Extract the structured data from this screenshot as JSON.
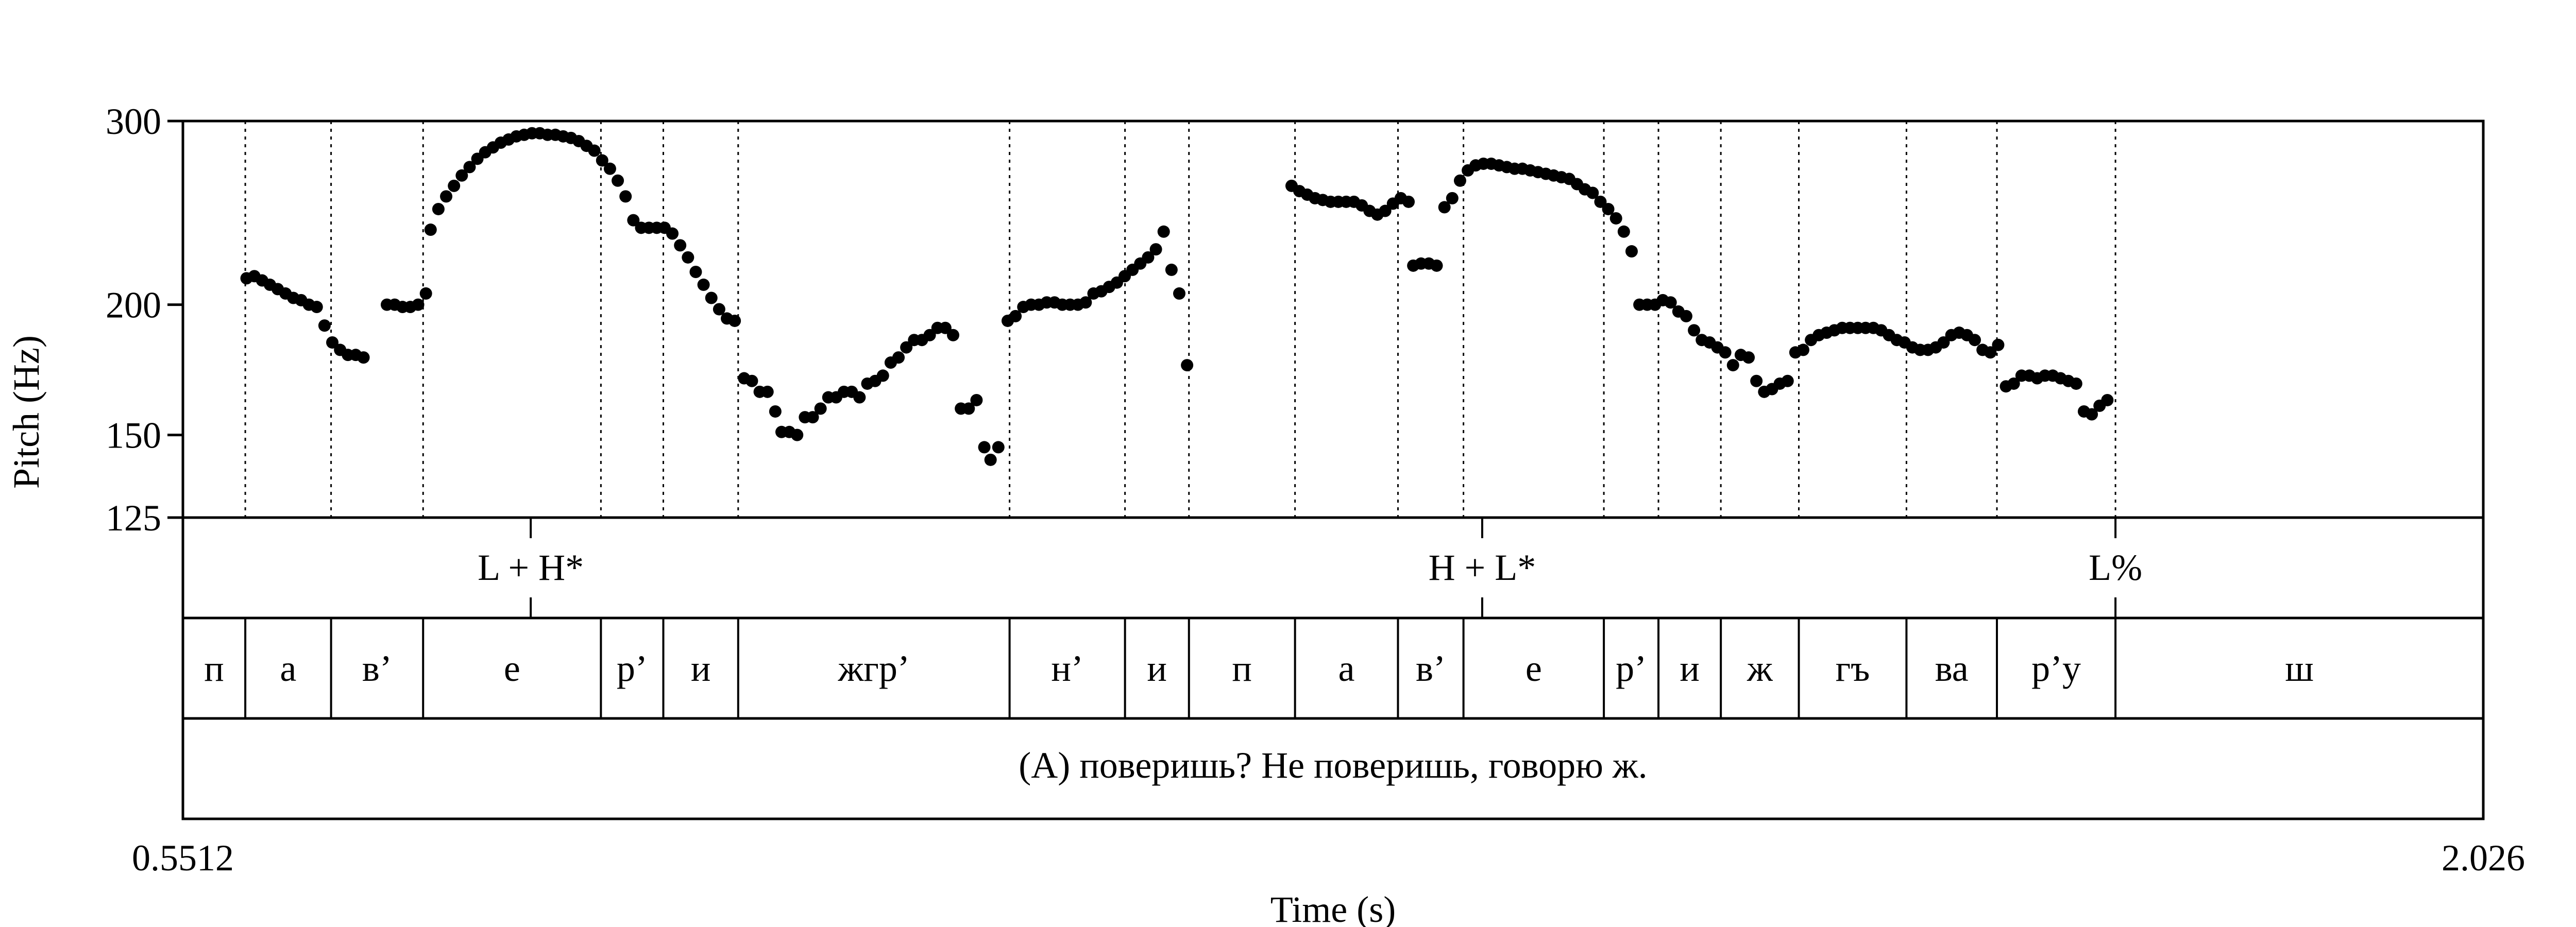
{
  "chart_data": {
    "type": "scatter",
    "xlabel": "Time (s)",
    "ylabel": "Pitch (Hz)",
    "xlim": [
      0.5512,
      2.026
    ],
    "ylim": [
      125,
      300
    ],
    "yscale": "log",
    "x_tick_labels": [
      "0.5512",
      "2.026"
    ],
    "y_ticks": [
      125,
      150,
      200,
      300
    ],
    "y_tick_labels": [
      "125",
      "150",
      "200",
      "300"
    ],
    "segment_boundaries": [
      0.5912,
      0.6462,
      0.7052,
      0.8192,
      0.8592,
      0.9072,
      1.0812,
      1.1552,
      1.1962,
      1.2642,
      1.3302,
      1.3722,
      1.4622,
      1.4972,
      1.5372,
      1.5872,
      1.6562,
      1.7142,
      1.7902
    ],
    "tiers": {
      "tones": [
        {
          "label": "L + H*",
          "time": 0.7742
        },
        {
          "label": "H + L*",
          "time": 1.3842
        },
        {
          "label": "L%",
          "time": 1.7902
        }
      ],
      "segments": [
        "п",
        "а",
        "в’",
        "е",
        "р’",
        "и",
        "жгр’",
        "н’",
        "и",
        "п",
        "а",
        "в’",
        "е",
        "р’",
        "и",
        "ж",
        "гъ",
        "ва",
        "р’у",
        "ш"
      ],
      "sentence": "(А) поверишь? Не поверишь, говорю ж."
    },
    "series": [
      {
        "points": [
          [
            0.592,
            212
          ],
          [
            0.597,
            213
          ],
          [
            0.602,
            211
          ],
          [
            0.607,
            209
          ],
          [
            0.612,
            207
          ],
          [
            0.617,
            205
          ],
          [
            0.622,
            203
          ],
          [
            0.627,
            202
          ],
          [
            0.632,
            200
          ],
          [
            0.637,
            199
          ],
          [
            0.642,
            191
          ],
          [
            0.647,
            184
          ],
          [
            0.652,
            181
          ],
          [
            0.657,
            179
          ],
          [
            0.662,
            179
          ],
          [
            0.667,
            178
          ],
          [
            0.682,
            200
          ],
          [
            0.687,
            200
          ],
          [
            0.692,
            199
          ],
          [
            0.697,
            199
          ],
          [
            0.702,
            200
          ],
          [
            0.707,
            205
          ],
          [
            0.71,
            236
          ],
          [
            0.715,
            247
          ],
          [
            0.72,
            254
          ],
          [
            0.725,
            260
          ],
          [
            0.73,
            266
          ],
          [
            0.735,
            271
          ],
          [
            0.74,
            276
          ],
          [
            0.745,
            280
          ],
          [
            0.75,
            283
          ],
          [
            0.755,
            286
          ],
          [
            0.76,
            288
          ],
          [
            0.765,
            290
          ],
          [
            0.77,
            291
          ],
          [
            0.775,
            292
          ],
          [
            0.78,
            292
          ],
          [
            0.785,
            291
          ],
          [
            0.79,
            291
          ],
          [
            0.795,
            290
          ],
          [
            0.8,
            289
          ],
          [
            0.805,
            287
          ],
          [
            0.81,
            284
          ],
          [
            0.815,
            281
          ],
          [
            0.82,
            275
          ],
          [
            0.825,
            270
          ],
          [
            0.83,
            263
          ],
          [
            0.835,
            254
          ],
          [
            0.84,
            241
          ],
          [
            0.845,
            237
          ],
          [
            0.85,
            237
          ],
          [
            0.855,
            237
          ],
          [
            0.86,
            237
          ],
          [
            0.865,
            234
          ],
          [
            0.87,
            228
          ],
          [
            0.875,
            222
          ],
          [
            0.88,
            215
          ],
          [
            0.885,
            209
          ],
          [
            0.89,
            203
          ],
          [
            0.895,
            198
          ],
          [
            0.9,
            194
          ],
          [
            0.905,
            193
          ],
          [
            0.911,
            170
          ],
          [
            0.916,
            169
          ],
          [
            0.921,
            165
          ],
          [
            0.926,
            165
          ],
          [
            0.931,
            158
          ],
          [
            0.935,
            151
          ],
          [
            0.94,
            151
          ],
          [
            0.945,
            150
          ],
          [
            0.95,
            156
          ],
          [
            0.955,
            156
          ],
          [
            0.96,
            159
          ],
          [
            0.965,
            163
          ],
          [
            0.97,
            163
          ],
          [
            0.975,
            165
          ],
          [
            0.98,
            165
          ],
          [
            0.985,
            163
          ],
          [
            0.99,
            168
          ],
          [
            0.995,
            169
          ],
          [
            1.0,
            171
          ],
          [
            1.005,
            176
          ],
          [
            1.01,
            178
          ],
          [
            1.015,
            182
          ],
          [
            1.02,
            185
          ],
          [
            1.025,
            185
          ],
          [
            1.03,
            187
          ],
          [
            1.035,
            190
          ],
          [
            1.04,
            190
          ],
          [
            1.045,
            187
          ],
          [
            1.05,
            159
          ],
          [
            1.055,
            159
          ],
          [
            1.06,
            162
          ],
          [
            1.065,
            146
          ],
          [
            1.069,
            142
          ],
          [
            1.074,
            146
          ],
          [
            1.08,
            193
          ],
          [
            1.085,
            195
          ],
          [
            1.09,
            199
          ],
          [
            1.095,
            200
          ],
          [
            1.1,
            200
          ],
          [
            1.105,
            201
          ],
          [
            1.11,
            201
          ],
          [
            1.115,
            200
          ],
          [
            1.12,
            200
          ],
          [
            1.125,
            200
          ],
          [
            1.13,
            201
          ],
          [
            1.135,
            205
          ],
          [
            1.14,
            206
          ],
          [
            1.145,
            208
          ],
          [
            1.15,
            210
          ],
          [
            1.155,
            213
          ],
          [
            1.16,
            216
          ],
          [
            1.165,
            219
          ],
          [
            1.17,
            222
          ],
          [
            1.175,
            226
          ],
          [
            1.18,
            235
          ],
          [
            1.185,
            216
          ],
          [
            1.19,
            205
          ],
          [
            1.195,
            175
          ],
          [
            1.262,
            260
          ],
          [
            1.267,
            257
          ],
          [
            1.272,
            255
          ],
          [
            1.277,
            253
          ],
          [
            1.282,
            252
          ],
          [
            1.287,
            251
          ],
          [
            1.292,
            251
          ],
          [
            1.297,
            251
          ],
          [
            1.302,
            251
          ],
          [
            1.307,
            249
          ],
          [
            1.312,
            246
          ],
          [
            1.317,
            244
          ],
          [
            1.322,
            246
          ],
          [
            1.327,
            250
          ],
          [
            1.332,
            253
          ],
          [
            1.337,
            251
          ],
          [
            1.34,
            218
          ],
          [
            1.345,
            219
          ],
          [
            1.35,
            219
          ],
          [
            1.355,
            218
          ],
          [
            1.36,
            248
          ],
          [
            1.365,
            253
          ],
          [
            1.37,
            263
          ],
          [
            1.375,
            269
          ],
          [
            1.38,
            272
          ],
          [
            1.385,
            273
          ],
          [
            1.39,
            273
          ],
          [
            1.395,
            272
          ],
          [
            1.4,
            271
          ],
          [
            1.405,
            270
          ],
          [
            1.41,
            270
          ],
          [
            1.415,
            269
          ],
          [
            1.42,
            268
          ],
          [
            1.425,
            267
          ],
          [
            1.43,
            266
          ],
          [
            1.435,
            265
          ],
          [
            1.44,
            264
          ],
          [
            1.445,
            261
          ],
          [
            1.45,
            258
          ],
          [
            1.455,
            256
          ],
          [
            1.46,
            251
          ],
          [
            1.465,
            247
          ],
          [
            1.47,
            242
          ],
          [
            1.475,
            235
          ],
          [
            1.48,
            225
          ],
          [
            1.485,
            200
          ],
          [
            1.49,
            200
          ],
          [
            1.495,
            200
          ],
          [
            1.5,
            202
          ],
          [
            1.505,
            201
          ],
          [
            1.51,
            197
          ],
          [
            1.515,
            195
          ],
          [
            1.52,
            189
          ],
          [
            1.525,
            185
          ],
          [
            1.53,
            184
          ],
          [
            1.535,
            182
          ],
          [
            1.54,
            180
          ],
          [
            1.545,
            175
          ],
          [
            1.55,
            179
          ],
          [
            1.555,
            178
          ],
          [
            1.56,
            169
          ],
          [
            1.565,
            165
          ],
          [
            1.57,
            166
          ],
          [
            1.575,
            168
          ],
          [
            1.58,
            169
          ],
          [
            1.585,
            180
          ],
          [
            1.59,
            181
          ],
          [
            1.595,
            185
          ],
          [
            1.6,
            187
          ],
          [
            1.605,
            188
          ],
          [
            1.61,
            189
          ],
          [
            1.615,
            190
          ],
          [
            1.62,
            190
          ],
          [
            1.625,
            190
          ],
          [
            1.63,
            190
          ],
          [
            1.635,
            190
          ],
          [
            1.64,
            189
          ],
          [
            1.645,
            187
          ],
          [
            1.65,
            185
          ],
          [
            1.655,
            184
          ],
          [
            1.66,
            182
          ],
          [
            1.665,
            181
          ],
          [
            1.67,
            181
          ],
          [
            1.675,
            182
          ],
          [
            1.68,
            184
          ],
          [
            1.685,
            187
          ],
          [
            1.69,
            188
          ],
          [
            1.695,
            187
          ],
          [
            1.7,
            185
          ],
          [
            1.705,
            181
          ],
          [
            1.71,
            180
          ],
          [
            1.715,
            183
          ],
          [
            1.72,
            167
          ],
          [
            1.725,
            168
          ],
          [
            1.73,
            171
          ],
          [
            1.735,
            171
          ],
          [
            1.74,
            170
          ],
          [
            1.745,
            171
          ],
          [
            1.75,
            171
          ],
          [
            1.755,
            170
          ],
          [
            1.76,
            169
          ],
          [
            1.765,
            168
          ],
          [
            1.77,
            158
          ],
          [
            1.775,
            157
          ],
          [
            1.78,
            160
          ],
          [
            1.785,
            162
          ]
        ]
      }
    ]
  }
}
